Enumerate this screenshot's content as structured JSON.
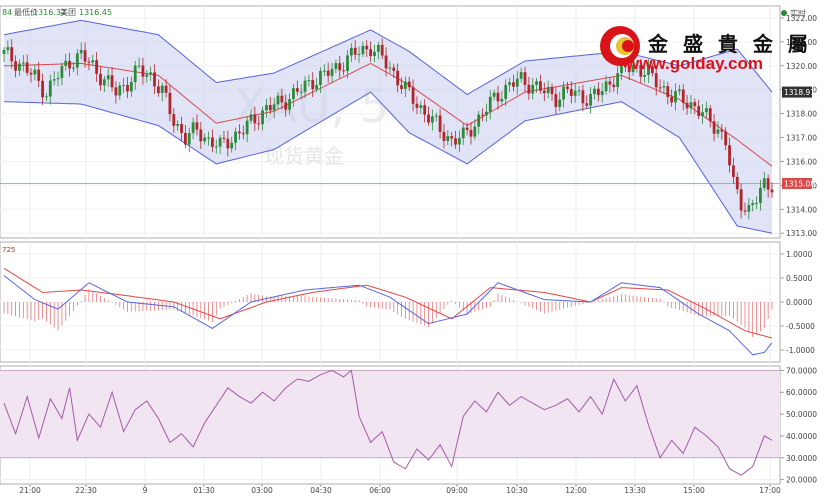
{
  "header": {
    "left_fragment": "84",
    "bid_label": "最低价",
    "bid_value": "1316.32",
    "ask_label": "美团",
    "ask_value": "1316.45",
    "realtime_label": "实时"
  },
  "watermark": {
    "symbol": "XAU, 5",
    "name_cn": "现货黄金"
  },
  "brand": {
    "name_cn": "金 盛 貴 金 屬",
    "url": "www.golday.com"
  },
  "colors": {
    "up": "#2e8a3a",
    "down": "#b0262a",
    "band_fill": "#c9cdf0",
    "band_line": "#5563d9",
    "mid_line": "#d94b4b",
    "macd_fast": "#5567e0",
    "macd_slow": "#e04646",
    "rsi_line": "#a45aa8",
    "rsi_fill": "#f1e5f1",
    "hline_price": "#e07a7a",
    "brand_red": "#d8131a"
  },
  "time_axis": [
    "21:00",
    "22:30",
    "9",
    "01:30",
    "03:00",
    "04:30",
    "06:00",
    "09:00",
    "10:30",
    "12:00",
    "13:30",
    "15:00",
    "17:00"
  ],
  "chart_data": [
    {
      "type": "candlestick",
      "title": "XAU, 5",
      "ylim": [
        1312.8,
        1322.5
      ],
      "yticks": [
        1313.0,
        1314.0,
        1315.0,
        1316.0,
        1317.0,
        1318.0,
        1319.0,
        1320.0,
        1321.0,
        1322.0
      ],
      "ytick_labels": [
        "1313.00",
        "1314.00",
        "1315.00",
        "1316.00",
        "1317.00",
        "1318.00",
        "1319.00",
        "1320.00",
        "1321.00",
        "1322.00"
      ],
      "current_price_label": "1315.08",
      "upper_band_label": "1318.91",
      "price_line": 1315.08,
      "close_path": [
        [
          0,
          1320.5
        ],
        [
          4,
          1320.1
        ],
        [
          8,
          1319.5
        ],
        [
          11,
          1318.9
        ],
        [
          14,
          1319.6
        ],
        [
          17,
          1320.2
        ],
        [
          20,
          1320.4
        ],
        [
          23,
          1320.0
        ],
        [
          26,
          1319.4
        ],
        [
          29,
          1318.9
        ],
        [
          32,
          1319.3
        ],
        [
          35,
          1319.8
        ],
        [
          38,
          1319.6
        ],
        [
          41,
          1318.9
        ],
        [
          44,
          1317.7
        ],
        [
          47,
          1317.0
        ],
        [
          50,
          1317.3
        ],
        [
          53,
          1316.9
        ],
        [
          56,
          1316.6
        ],
        [
          59,
          1317.0
        ],
        [
          62,
          1317.3
        ],
        [
          65,
          1317.8
        ],
        [
          68,
          1318.2
        ],
        [
          71,
          1318.4
        ],
        [
          74,
          1318.7
        ],
        [
          77,
          1319.0
        ],
        [
          80,
          1319.4
        ],
        [
          83,
          1319.6
        ],
        [
          86,
          1319.9
        ],
        [
          89,
          1320.3
        ],
        [
          92,
          1320.6
        ],
        [
          95,
          1320.8
        ],
        [
          98,
          1320.3
        ],
        [
          101,
          1319.7
        ],
        [
          104,
          1319.0
        ],
        [
          107,
          1318.4
        ],
        [
          110,
          1317.9
        ],
        [
          113,
          1317.3
        ],
        [
          116,
          1316.9
        ],
        [
          119,
          1317.0
        ],
        [
          122,
          1317.6
        ],
        [
          125,
          1318.2
        ],
        [
          128,
          1318.8
        ],
        [
          131,
          1319.2
        ],
        [
          134,
          1319.4
        ],
        [
          137,
          1319.2
        ],
        [
          140,
          1318.9
        ],
        [
          143,
          1318.7
        ],
        [
          146,
          1318.9
        ],
        [
          149,
          1318.8
        ],
        [
          152,
          1318.6
        ],
        [
          155,
          1319.0
        ],
        [
          158,
          1319.5
        ],
        [
          161,
          1319.9
        ],
        [
          164,
          1320.0
        ],
        [
          167,
          1319.6
        ],
        [
          170,
          1319.2
        ],
        [
          173,
          1318.7
        ],
        [
          176,
          1318.6
        ],
        [
          179,
          1318.3
        ],
        [
          182,
          1317.8
        ],
        [
          185,
          1317.4
        ],
        [
          187,
          1316.8
        ],
        [
          189,
          1315.0
        ],
        [
          191,
          1314.3
        ],
        [
          193,
          1314.0
        ],
        [
          195,
          1314.4
        ],
        [
          197,
          1315.0
        ],
        [
          199,
          1315.1
        ]
      ],
      "band_upper": [
        [
          0,
          1321.3
        ],
        [
          20,
          1321.9
        ],
        [
          40,
          1321.3
        ],
        [
          55,
          1319.3
        ],
        [
          70,
          1319.7
        ],
        [
          95,
          1321.5
        ],
        [
          105,
          1320.6
        ],
        [
          120,
          1318.8
        ],
        [
          135,
          1320.2
        ],
        [
          160,
          1320.6
        ],
        [
          175,
          1320.0
        ],
        [
          190,
          1320.7
        ],
        [
          199,
          1318.9
        ]
      ],
      "band_lower": [
        [
          0,
          1318.5
        ],
        [
          20,
          1318.4
        ],
        [
          40,
          1317.5
        ],
        [
          55,
          1315.9
        ],
        [
          70,
          1316.5
        ],
        [
          95,
          1318.9
        ],
        [
          105,
          1317.2
        ],
        [
          120,
          1315.9
        ],
        [
          135,
          1317.7
        ],
        [
          160,
          1318.5
        ],
        [
          175,
          1317.0
        ],
        [
          190,
          1313.3
        ],
        [
          199,
          1313.0
        ]
      ],
      "band_mid": [
        [
          0,
          1320.0
        ],
        [
          20,
          1320.1
        ],
        [
          40,
          1319.6
        ],
        [
          55,
          1317.6
        ],
        [
          70,
          1318.1
        ],
        [
          95,
          1320.1
        ],
        [
          105,
          1319.2
        ],
        [
          120,
          1317.5
        ],
        [
          135,
          1318.9
        ],
        [
          160,
          1319.6
        ],
        [
          175,
          1318.6
        ],
        [
          190,
          1316.9
        ],
        [
          199,
          1315.8
        ]
      ]
    },
    {
      "type": "line",
      "title": "MACD",
      "label": "725",
      "ylim": [
        -1.25,
        1.25
      ],
      "yticks": [
        1.0,
        0.5,
        0.0,
        -0.5,
        -1.0
      ],
      "ytick_labels": [
        "1.0000",
        "0.5000",
        "0.0000",
        "-0.5000",
        "-1.0000"
      ],
      "fast": [
        [
          0,
          0.55
        ],
        [
          8,
          0.05
        ],
        [
          14,
          -0.15
        ],
        [
          22,
          0.4
        ],
        [
          32,
          0.0
        ],
        [
          44,
          -0.1
        ],
        [
          54,
          -0.55
        ],
        [
          64,
          0.0
        ],
        [
          78,
          0.25
        ],
        [
          92,
          0.35
        ],
        [
          100,
          0.1
        ],
        [
          110,
          -0.45
        ],
        [
          120,
          -0.25
        ],
        [
          128,
          0.4
        ],
        [
          140,
          0.05
        ],
        [
          152,
          0.0
        ],
        [
          160,
          0.4
        ],
        [
          170,
          0.3
        ],
        [
          180,
          -0.25
        ],
        [
          188,
          -0.6
        ],
        [
          194,
          -1.1
        ],
        [
          197,
          -1.05
        ],
        [
          199,
          -0.85
        ]
      ],
      "slow": [
        [
          0,
          0.7
        ],
        [
          10,
          0.2
        ],
        [
          20,
          0.25
        ],
        [
          30,
          0.15
        ],
        [
          44,
          0.0
        ],
        [
          56,
          -0.35
        ],
        [
          68,
          0.0
        ],
        [
          80,
          0.2
        ],
        [
          94,
          0.35
        ],
        [
          104,
          0.1
        ],
        [
          116,
          -0.35
        ],
        [
          126,
          0.3
        ],
        [
          140,
          0.2
        ],
        [
          152,
          0.0
        ],
        [
          160,
          0.3
        ],
        [
          172,
          0.25
        ],
        [
          182,
          -0.15
        ],
        [
          192,
          -0.6
        ],
        [
          199,
          -0.75
        ]
      ]
    },
    {
      "type": "line",
      "title": "RSI",
      "ylim": [
        18,
        72
      ],
      "yticks": [
        20,
        30,
        40,
        50,
        60,
        70
      ],
      "ytick_labels": [
        "20.0000",
        "30.0000",
        "40.0000",
        "50.0000",
        "60.0000",
        "70.0000"
      ],
      "band": [
        30,
        70
      ],
      "values": [
        [
          0,
          55
        ],
        [
          3,
          41
        ],
        [
          6,
          58
        ],
        [
          9,
          39
        ],
        [
          12,
          57
        ],
        [
          15,
          48
        ],
        [
          17,
          62
        ],
        [
          19,
          38
        ],
        [
          22,
          50
        ],
        [
          25,
          44
        ],
        [
          28,
          60
        ],
        [
          31,
          42
        ],
        [
          34,
          52
        ],
        [
          37,
          56
        ],
        [
          40,
          48
        ],
        [
          43,
          37
        ],
        [
          46,
          41
        ],
        [
          49,
          35
        ],
        [
          52,
          46
        ],
        [
          55,
          54
        ],
        [
          58,
          62
        ],
        [
          61,
          58
        ],
        [
          64,
          55
        ],
        [
          67,
          60
        ],
        [
          70,
          56
        ],
        [
          73,
          62
        ],
        [
          76,
          66
        ],
        [
          79,
          65
        ],
        [
          82,
          68
        ],
        [
          85,
          70
        ],
        [
          88,
          67
        ],
        [
          90,
          70
        ],
        [
          92,
          49
        ],
        [
          95,
          37
        ],
        [
          98,
          42
        ],
        [
          101,
          28
        ],
        [
          104,
          25
        ],
        [
          107,
          34
        ],
        [
          110,
          29
        ],
        [
          113,
          36
        ],
        [
          116,
          26
        ],
        [
          119,
          49
        ],
        [
          122,
          56
        ],
        [
          125,
          51
        ],
        [
          128,
          60
        ],
        [
          131,
          54
        ],
        [
          134,
          58
        ],
        [
          137,
          55
        ],
        [
          140,
          52
        ],
        [
          143,
          54
        ],
        [
          146,
          57
        ],
        [
          149,
          51
        ],
        [
          152,
          58
        ],
        [
          155,
          50
        ],
        [
          158,
          66
        ],
        [
          161,
          56
        ],
        [
          164,
          63
        ],
        [
          167,
          45
        ],
        [
          170,
          30
        ],
        [
          173,
          38
        ],
        [
          176,
          32
        ],
        [
          179,
          44
        ],
        [
          182,
          40
        ],
        [
          185,
          35
        ],
        [
          188,
          25
        ],
        [
          191,
          22
        ],
        [
          194,
          26
        ],
        [
          197,
          40
        ],
        [
          199,
          38
        ]
      ]
    }
  ]
}
